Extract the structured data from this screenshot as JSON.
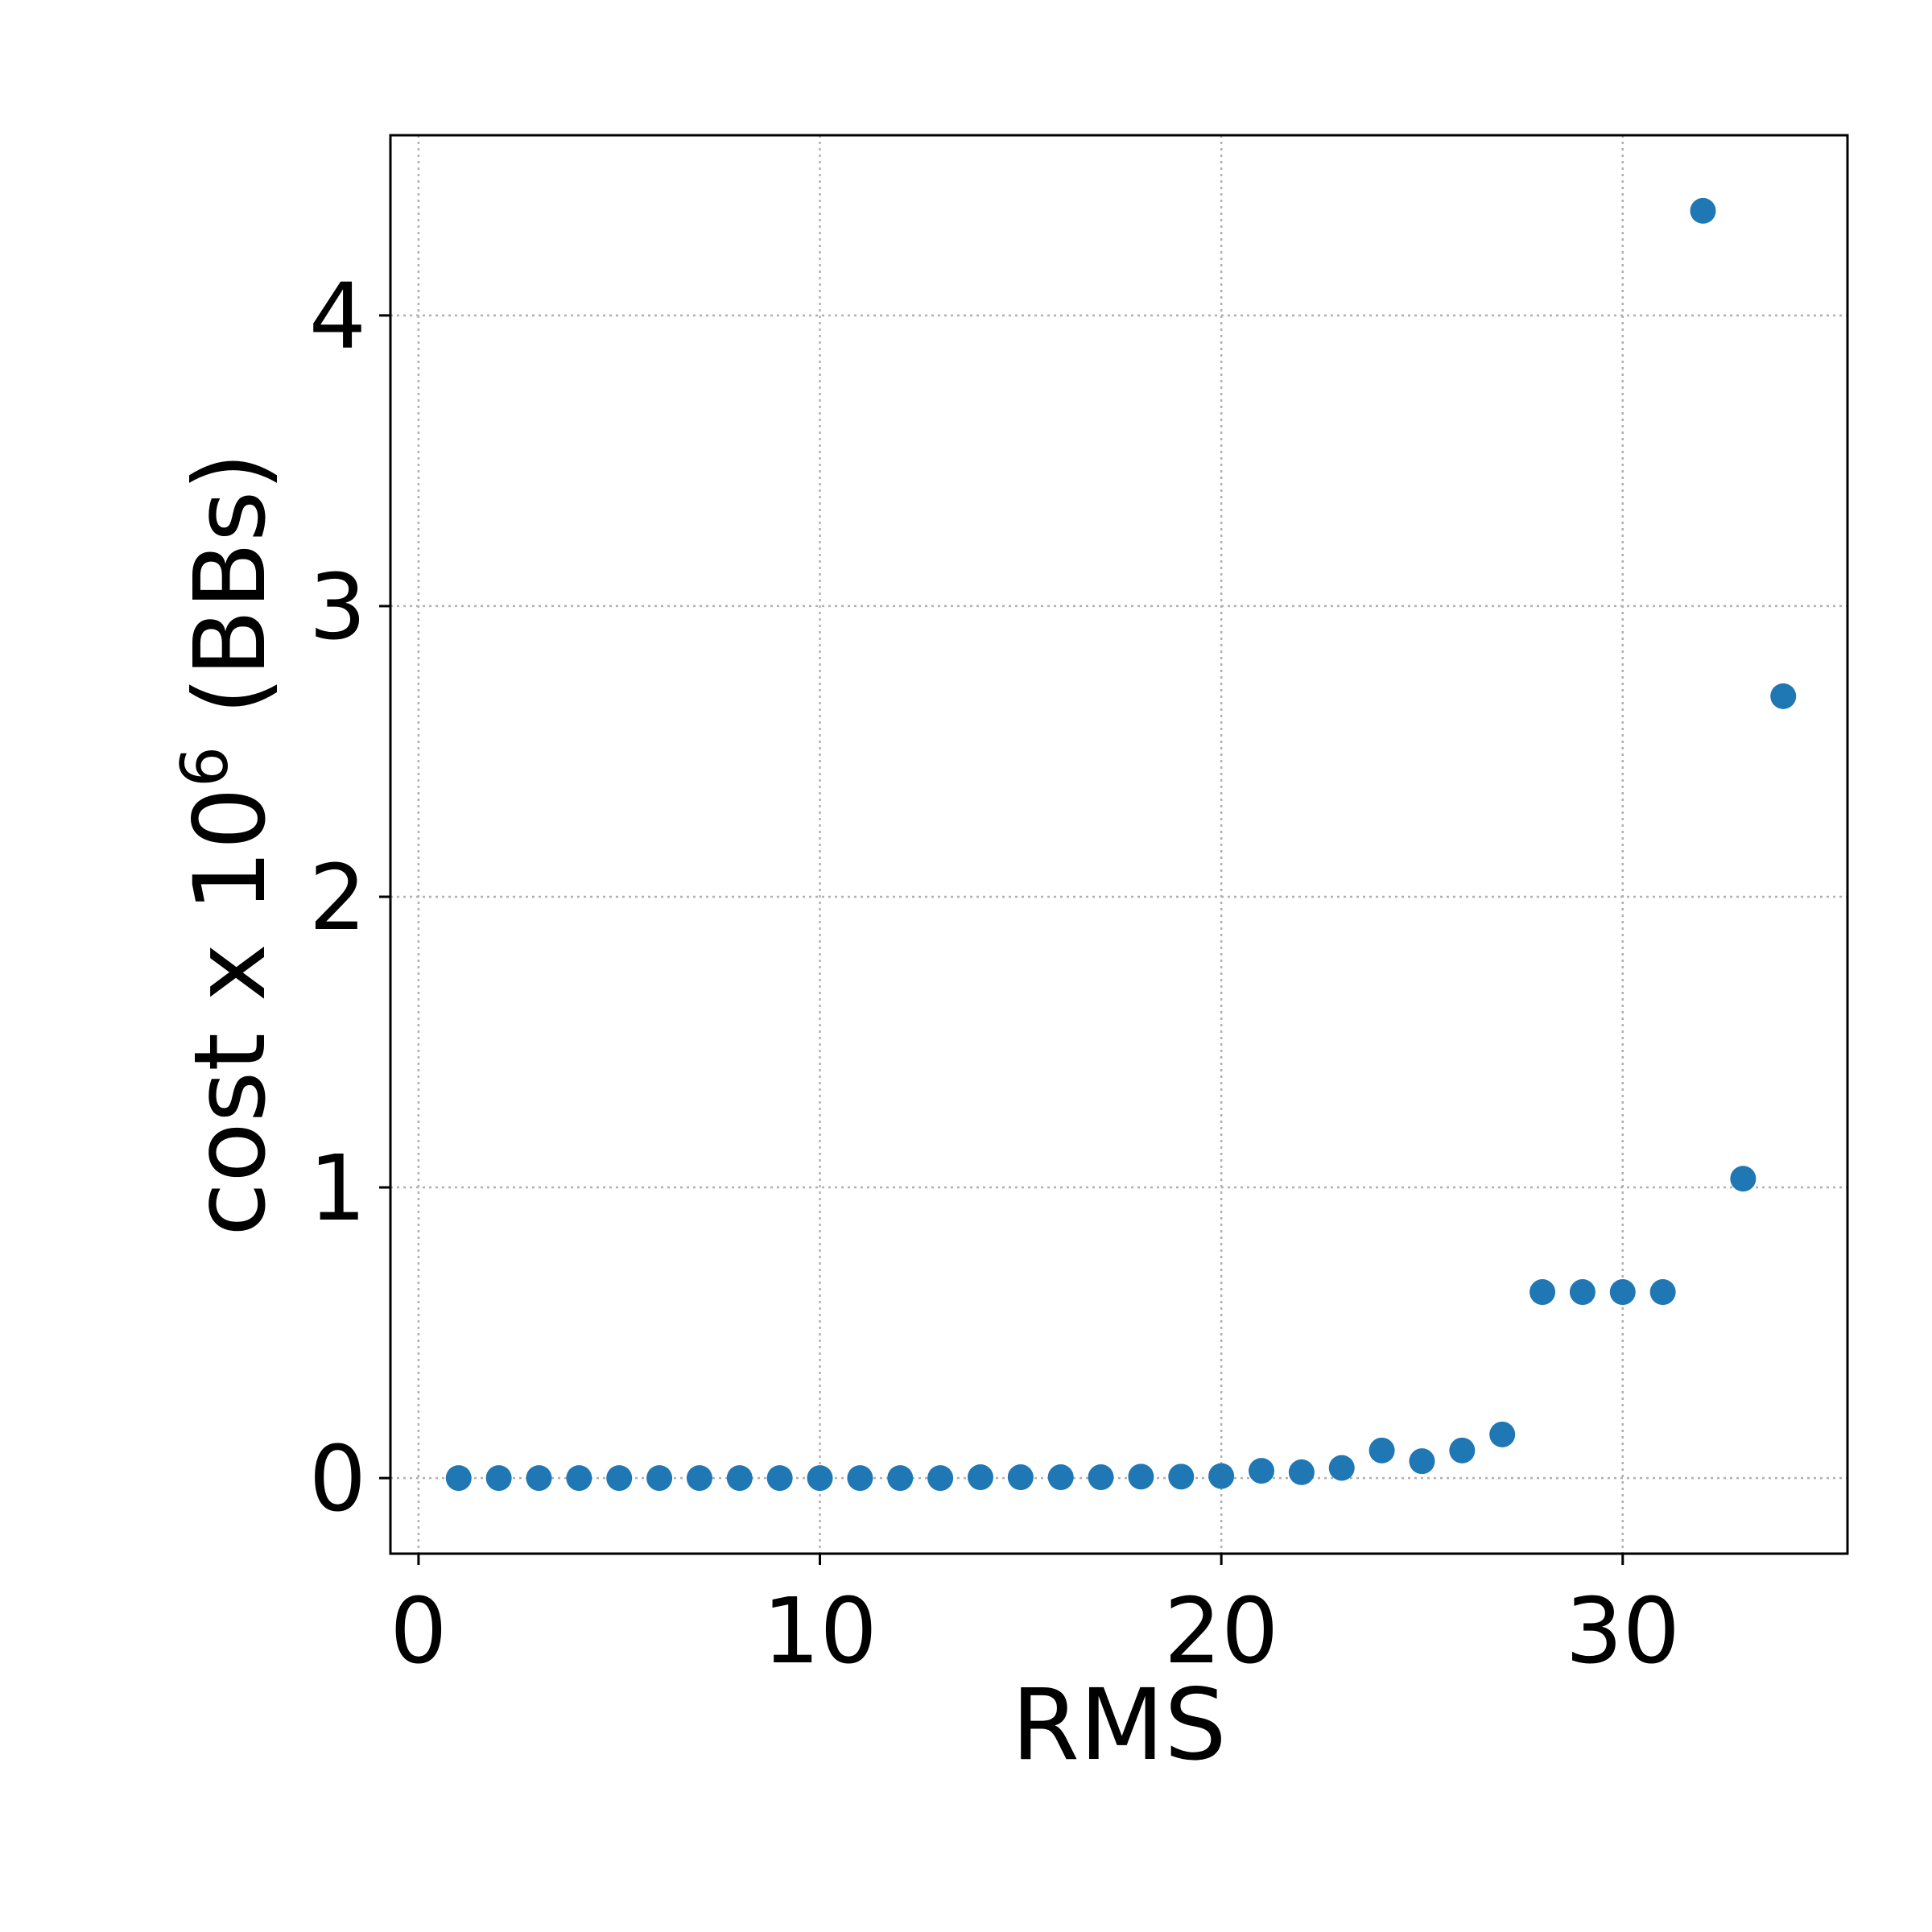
{
  "chart_data": {
    "type": "scatter",
    "title": "",
    "xlabel": "RMS",
    "ylabel": {
      "prefix": "cost x 10",
      "exponent": "6",
      "suffix": " (BBs)"
    },
    "xlim": [
      -0.7,
      35.6
    ],
    "ylim": [
      -0.26,
      4.62
    ],
    "xticks": [
      0,
      10,
      20,
      30
    ],
    "yticks": [
      0,
      1,
      2,
      3,
      4
    ],
    "grid": true,
    "marker_color": "#1f77b4",
    "series": [
      {
        "x": [
          1,
          2,
          3,
          4,
          5,
          6,
          7,
          8,
          9,
          10,
          11,
          12,
          13,
          14,
          15,
          16,
          17,
          18,
          19,
          20,
          21,
          22,
          23,
          24,
          25,
          26,
          27,
          28,
          29,
          30,
          31,
          32,
          33,
          34
        ],
        "y": [
          0,
          0,
          0,
          0,
          0,
          0,
          0,
          0,
          0,
          0,
          0,
          0,
          0,
          0.003,
          0.003,
          0.003,
          0.003,
          0.005,
          0.005,
          0.007,
          0.025,
          0.02,
          0.035,
          0.095,
          0.058,
          0.095,
          0.15,
          0.64,
          0.64,
          0.64,
          0.64,
          4.36,
          1.03,
          2.69
        ]
      }
    ]
  }
}
